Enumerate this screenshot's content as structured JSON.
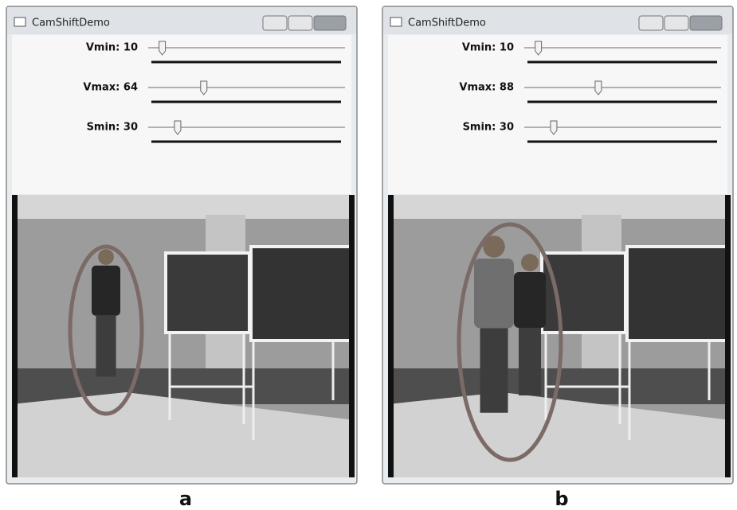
{
  "windows": [
    {
      "title": "CamShiftDemo",
      "caption": "a",
      "sliders": [
        {
          "label": "Vmin: 10",
          "value": 10
        },
        {
          "label": "Vmax: 64",
          "value": 64
        },
        {
          "label": "Smin: 30",
          "value": 30
        }
      ]
    },
    {
      "title": "CamShiftDemo",
      "caption": "b",
      "sliders": [
        {
          "label": "Vmin: 10",
          "value": 10
        },
        {
          "label": "Vmax: 88",
          "value": 88
        },
        {
          "label": "Smin: 30",
          "value": 30
        }
      ]
    }
  ]
}
